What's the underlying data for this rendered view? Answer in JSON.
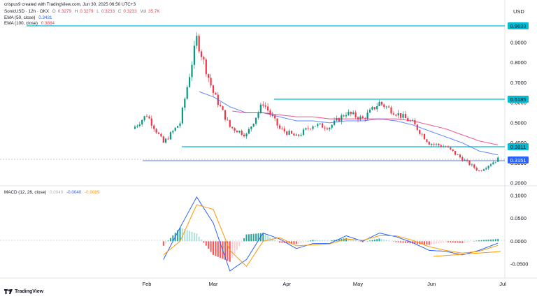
{
  "header": {
    "credit": "crispus9 created with TradingView.com, Jun 30, 2025 06:50 UTC+3",
    "symbol": "SonicUSD · 12h · OKX",
    "o_label": "O",
    "o_value": "0.3279",
    "h_label": "H",
    "h_value": "0.3279",
    "l_label": "L",
    "l_value": "0.3233",
    "c_label": "C",
    "c_value": "0.3233",
    "vol_label": "Vol",
    "vol_value": "35.7K"
  },
  "indicators": {
    "ema50_label": "EMA (50, close)",
    "ema50_value": "0.3431",
    "ema100_label": "EMA (100, close)",
    "ema100_value": "0.3884",
    "macd_label": "MACD (12, 26, close)",
    "macd_hist_value": "0.0049",
    "macd_line_value": "-0.0040",
    "macd_signal_value": "-0.0089"
  },
  "axis": {
    "currency": "USD",
    "price_ticks": [
      "0.9000",
      "0.8000",
      "0.7000",
      "0.6000",
      "0.5000",
      "0.4000",
      "0.3000",
      "0.2000"
    ],
    "macd_ticks": [
      "0.1000",
      "0.0500",
      "0.0000",
      "-0.0500"
    ],
    "dates": [
      "Feb",
      "Mar",
      "Apr",
      "May",
      "Jun",
      "Jul"
    ]
  },
  "levels": {
    "top": "0.9633",
    "mid_high": "0.6185",
    "support": "0.3811",
    "current": "0.3151"
  },
  "footer": {
    "brand": "TradingView"
  },
  "colors": {
    "up": "#089981",
    "down": "#f23645",
    "ema50": "#2962ff",
    "ema100": "#e91e63",
    "macd": "#2962ff",
    "signal": "#ff9800",
    "level": "#00bcd4",
    "current": "#2962ff"
  },
  "chart_data": {
    "type": "line",
    "ylim": [
      0.18,
      1.0
    ],
    "macd_ylim": [
      -0.075,
      0.115
    ],
    "x": [
      "2025-01-26",
      "2025-02-01",
      "2025-02-08",
      "2025-02-15",
      "2025-02-22",
      "2025-03-01",
      "2025-03-08",
      "2025-03-15",
      "2025-03-22",
      "2025-03-29",
      "2025-04-05",
      "2025-04-12",
      "2025-04-19",
      "2025-04-26",
      "2025-05-03",
      "2025-05-10",
      "2025-05-17",
      "2025-05-24",
      "2025-05-31",
      "2025-06-07",
      "2025-06-14",
      "2025-06-21",
      "2025-06-29"
    ],
    "series": [
      {
        "name": "SonicUSD",
        "values": [
          0.47,
          0.54,
          0.4,
          0.5,
          0.92,
          0.65,
          0.48,
          0.44,
          0.6,
          0.47,
          0.43,
          0.49,
          0.48,
          0.55,
          0.52,
          0.6,
          0.55,
          0.5,
          0.4,
          0.38,
          0.32,
          0.26,
          0.32
        ]
      },
      {
        "name": "EMA (50, close)",
        "values": [
          null,
          null,
          null,
          null,
          0.66,
          0.63,
          0.58,
          0.55,
          0.55,
          0.53,
          0.51,
          0.51,
          0.5,
          0.51,
          0.51,
          0.52,
          0.51,
          0.49,
          0.46,
          0.43,
          0.4,
          0.36,
          0.34
        ]
      },
      {
        "name": "EMA (100, close)",
        "values": [
          null,
          null,
          null,
          null,
          null,
          null,
          0.56,
          0.55,
          0.55,
          0.54,
          0.53,
          0.53,
          0.52,
          0.52,
          0.52,
          0.52,
          0.52,
          0.51,
          0.49,
          0.47,
          0.44,
          0.41,
          0.39
        ]
      }
    ],
    "macd": {
      "macd_line": [
        -0.045,
        -0.01,
        -0.04,
        0.03,
        0.097,
        0.04,
        -0.065,
        -0.04,
        0.018,
        0.005,
        -0.016,
        -0.005,
        -0.005,
        0.012,
        0.0,
        0.018,
        0.01,
        -0.003,
        -0.02,
        -0.022,
        -0.03,
        -0.02,
        -0.004
      ],
      "signal_line": [
        -0.03,
        -0.02,
        -0.03,
        0.0,
        0.08,
        0.07,
        -0.02,
        -0.055,
        0.0,
        0.008,
        -0.01,
        -0.008,
        -0.006,
        0.005,
        0.002,
        0.012,
        0.012,
        0.002,
        -0.012,
        -0.02,
        -0.026,
        -0.022,
        -0.009
      ]
    }
  }
}
